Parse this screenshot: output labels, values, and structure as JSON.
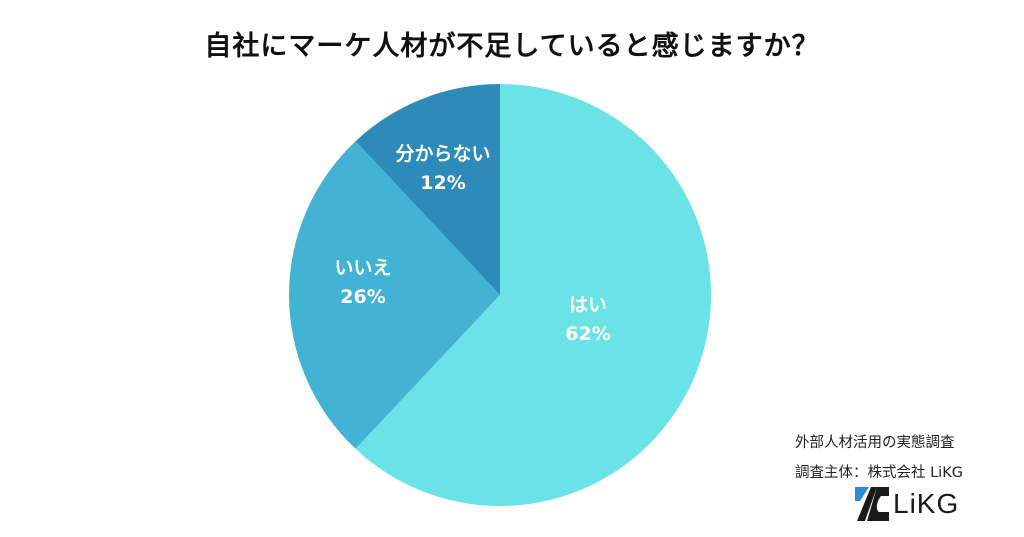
{
  "title": "自社にマーケ人材が不足していると感じますか？",
  "chart_data": {
    "type": "pie",
    "title": "自社にマーケ人材が不足していると感じますか？",
    "start_angle": "12 o'clock",
    "direction": "clockwise",
    "categories": [
      "はい",
      "いいえ",
      "分からない"
    ],
    "values": [
      62,
      26,
      12
    ],
    "unit": "%",
    "colors": [
      "#6BE3E6",
      "#42B3D5",
      "#2D8BBA"
    ],
    "data_labels": [
      "はい 62%",
      "いいえ 26%",
      "分からない 12%"
    ],
    "legend": "none (labels inside slices)"
  },
  "slices": [
    {
      "label": "はい",
      "value_text": "62%"
    },
    {
      "label": "いいえ",
      "value_text": "26%"
    },
    {
      "label": "分からない",
      "value_text": "12%"
    }
  ],
  "credits": {
    "survey_name": "外部人材活用の実態調査",
    "sponsor": "調査主体：株式会社 LiKG"
  },
  "logo": {
    "text": "LiKG",
    "accent_color": "#2A8FD0",
    "icon": "likg-logo-icon"
  }
}
